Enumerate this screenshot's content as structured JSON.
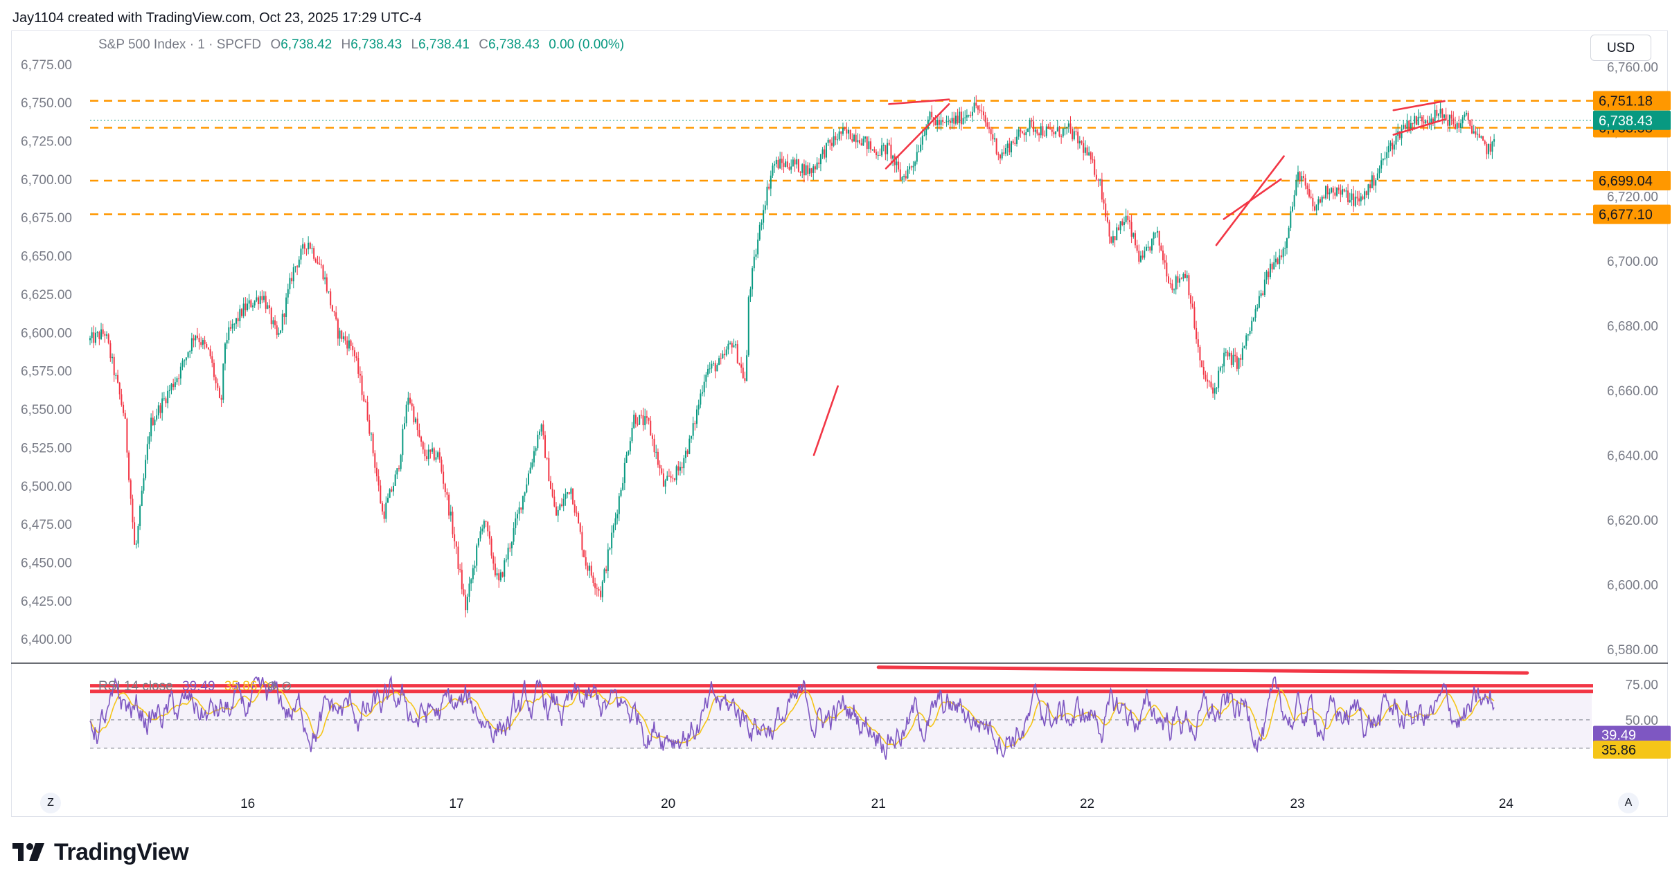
{
  "header": {
    "attribution": "Jay1104 created with TradingView.com, Oct 23, 2025 17:29 UTC-4"
  },
  "legend": {
    "symbol": "S&P 500 Index · 1 · SPCFD",
    "open_label": "O",
    "open": "6,738.42",
    "high_label": "H",
    "high": "6,738.43",
    "low_label": "L",
    "low": "6,738.41",
    "close_label": "C",
    "close": "6,738.43",
    "change": "0.00 (0.00%)"
  },
  "currency_button": "USD",
  "rsi_legend": {
    "label": "RSI 14 close",
    "rsi": "39.49",
    "ma": "35.86",
    "icons": "⊘ ⊘"
  },
  "footer": {
    "logo_text": "TradingView"
  },
  "scale_buttons": {
    "left": "Z",
    "right": "A"
  },
  "colors": {
    "up": "#089981",
    "down": "#f23645",
    "level": "#ff9800",
    "rsi": "#7e57c2",
    "rsi_ma": "#f5c518",
    "drawing": "#f23645",
    "price_tag": "#089981"
  },
  "chart_data": {
    "type": "candlestick",
    "left_axis": {
      "ticks": [
        "6,775.00",
        "6,750.00",
        "6,725.00",
        "6,700.00",
        "6,675.00",
        "6,650.00",
        "6,625.00",
        "6,600.00",
        "6,575.00",
        "6,550.00",
        "6,525.00",
        "6,500.00",
        "6,475.00",
        "6,450.00",
        "6,425.00",
        "6,400.00"
      ],
      "range": [
        6387,
        6788
      ]
    },
    "right_axis": {
      "ticks": [
        "6,760.00",
        "6,740.00",
        "6,720.00",
        "6,700.00",
        "6,680.00",
        "6,660.00",
        "6,640.00",
        "6,620.00",
        "6,600.00",
        "6,580.00"
      ],
      "range": [
        6577,
        6767
      ]
    },
    "x_ticks": [
      {
        "label": "16",
        "pos": 0.105
      },
      {
        "label": "17",
        "pos": 0.244
      },
      {
        "label": "20",
        "pos": 0.385
      },
      {
        "label": "21",
        "pos": 0.525
      },
      {
        "label": "22",
        "pos": 0.664
      },
      {
        "label": "23",
        "pos": 0.804
      },
      {
        "label": "24",
        "pos": 0.943
      }
    ],
    "price_keypoints": [
      [
        0.0,
        6595
      ],
      [
        0.01,
        6600
      ],
      [
        0.023,
        6545
      ],
      [
        0.03,
        6455
      ],
      [
        0.04,
        6540
      ],
      [
        0.06,
        6575
      ],
      [
        0.07,
        6600
      ],
      [
        0.08,
        6585
      ],
      [
        0.087,
        6550
      ],
      [
        0.09,
        6595
      ],
      [
        0.102,
        6615
      ],
      [
        0.115,
        6625
      ],
      [
        0.125,
        6595
      ],
      [
        0.135,
        6640
      ],
      [
        0.145,
        6660
      ],
      [
        0.155,
        6640
      ],
      [
        0.165,
        6600
      ],
      [
        0.175,
        6590
      ],
      [
        0.185,
        6545
      ],
      [
        0.195,
        6480
      ],
      [
        0.205,
        6510
      ],
      [
        0.212,
        6560
      ],
      [
        0.222,
        6520
      ],
      [
        0.232,
        6520
      ],
      [
        0.24,
        6480
      ],
      [
        0.25,
        6420
      ],
      [
        0.262,
        6480
      ],
      [
        0.272,
        6435
      ],
      [
        0.282,
        6470
      ],
      [
        0.29,
        6500
      ],
      [
        0.3,
        6540
      ],
      [
        0.31,
        6480
      ],
      [
        0.32,
        6500
      ],
      [
        0.33,
        6450
      ],
      [
        0.34,
        6430
      ],
      [
        0.35,
        6480
      ],
      [
        0.362,
        6545
      ],
      [
        0.372,
        6540
      ],
      [
        0.382,
        6500
      ],
      [
        0.392,
        6510
      ],
      [
        0.4,
        6530
      ],
      [
        0.41,
        6575
      ],
      [
        0.42,
        6580
      ],
      [
        0.428,
        6595
      ],
      [
        0.437,
        6565
      ],
      [
        0.438,
        6620
      ],
      [
        0.448,
        6680
      ],
      [
        0.455,
        6710
      ],
      [
        0.468,
        6710
      ],
      [
        0.48,
        6705
      ],
      [
        0.49,
        6720
      ],
      [
        0.5,
        6730
      ],
      [
        0.512,
        6728
      ],
      [
        0.522,
        6718
      ],
      [
        0.532,
        6720
      ],
      [
        0.54,
        6700
      ],
      [
        0.548,
        6710
      ],
      [
        0.558,
        6740
      ],
      [
        0.568,
        6735
      ],
      [
        0.58,
        6740
      ],
      [
        0.59,
        6748
      ],
      [
        0.6,
        6730
      ],
      [
        0.606,
        6715
      ],
      [
        0.615,
        6725
      ],
      [
        0.625,
        6735
      ],
      [
        0.64,
        6730
      ],
      [
        0.652,
        6732
      ],
      [
        0.662,
        6720
      ],
      [
        0.672,
        6700
      ],
      [
        0.68,
        6660
      ],
      [
        0.69,
        6675
      ],
      [
        0.7,
        6645
      ],
      [
        0.71,
        6665
      ],
      [
        0.72,
        6630
      ],
      [
        0.73,
        6640
      ],
      [
        0.74,
        6575
      ],
      [
        0.748,
        6560
      ],
      [
        0.755,
        6585
      ],
      [
        0.765,
        6580
      ],
      [
        0.775,
        6610
      ],
      [
        0.785,
        6640
      ],
      [
        0.795,
        6655
      ],
      [
        0.805,
        6705
      ],
      [
        0.815,
        6680
      ],
      [
        0.825,
        6695
      ],
      [
        0.835,
        6690
      ],
      [
        0.845,
        6685
      ],
      [
        0.855,
        6700
      ],
      [
        0.865,
        6720
      ],
      [
        0.875,
        6735
      ],
      [
        0.882,
        6738
      ],
      [
        0.89,
        6740
      ],
      [
        0.9,
        6742
      ],
      [
        0.91,
        6735
      ],
      [
        0.917,
        6740
      ],
      [
        0.925,
        6725
      ],
      [
        0.93,
        6720
      ],
      [
        0.935,
        6722
      ]
    ],
    "levels": [
      {
        "value": 6751.18,
        "label": "6,751.18",
        "style": "dashed"
      },
      {
        "value": 6733.58,
        "label": "6,733.58",
        "style": "dashed"
      },
      {
        "value": 6699.04,
        "label": "6,699.04",
        "style": "dashed"
      },
      {
        "value": 6677.1,
        "label": "6,677.10",
        "style": "dashed"
      }
    ],
    "current_price": {
      "value": 6738.43,
      "label": "6,738.43"
    },
    "drawings": [
      {
        "x1": 0.53,
        "v1": 6707,
        "x2": 0.572,
        "v2": 6749
      },
      {
        "x1": 0.532,
        "v1": 6749,
        "x2": 0.572,
        "v2": 6752
      },
      {
        "x1": 0.482,
        "v1": 6520,
        "x2": 0.498,
        "v2": 6565
      },
      {
        "x1": 0.75,
        "v1": 6657,
        "x2": 0.795,
        "v2": 6715
      },
      {
        "x1": 0.755,
        "v1": 6674,
        "x2": 0.793,
        "v2": 6700
      },
      {
        "x1": 0.868,
        "v1": 6745,
        "x2": 0.902,
        "v2": 6751
      },
      {
        "x1": 0.868,
        "v1": 6729,
        "x2": 0.902,
        "v2": 6739
      }
    ],
    "rsi": {
      "ticks": [
        "75.00",
        "50.00"
      ],
      "range": [
        10,
        85
      ],
      "current": {
        "value": 39.49,
        "label": "39.49"
      },
      "ma": {
        "value": 35.86,
        "label": "35.86"
      },
      "band": [
        30,
        70
      ],
      "red_lines": [
        74,
        70
      ],
      "trend_line": {
        "x1": 0.525,
        "v1": 87,
        "x2": 0.957,
        "v2": 83
      }
    }
  }
}
